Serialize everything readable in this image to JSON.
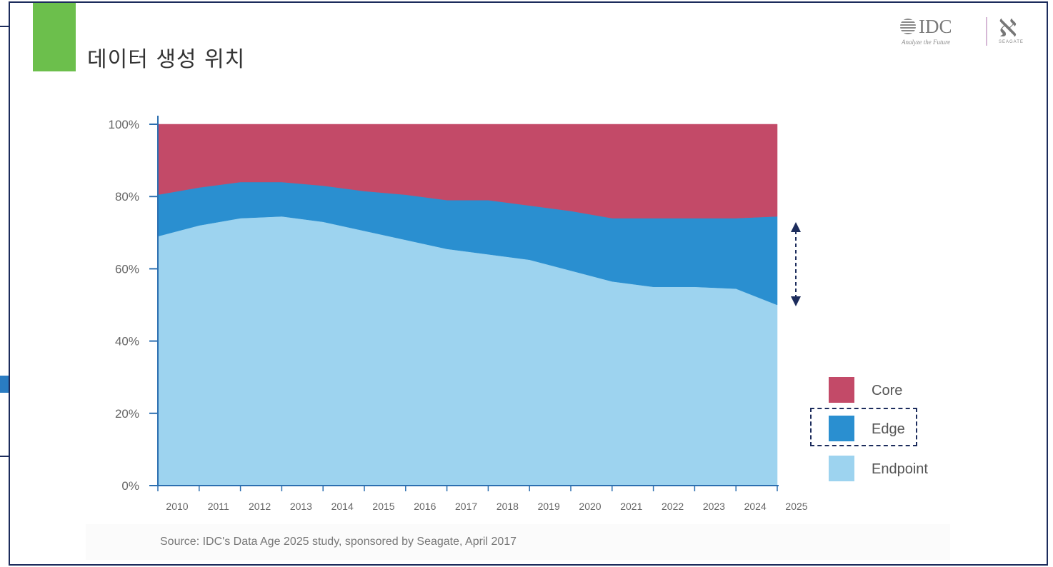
{
  "title": "데이터 생성 위치",
  "logos": {
    "idc_text": "IDC",
    "idc_tagline": "Analyze the Future",
    "seagate_word": "SEAGATE"
  },
  "source": "Source: IDC's Data Age 2025 study, sponsored by Seagate, April 2017",
  "colors": {
    "core": "#c34a68",
    "edge": "#2a8fd0",
    "endpoint": "#9dd3ef",
    "axis": "#2c6fb0",
    "arrow": "#1c2c5c"
  },
  "chart_data": {
    "type": "area",
    "stacked": true,
    "x": [
      "2010",
      "2011",
      "2012",
      "2013",
      "2014",
      "2015",
      "2016",
      "2017",
      "2018",
      "2019",
      "2020",
      "2021",
      "2022",
      "2023",
      "2024",
      "2025"
    ],
    "series": [
      {
        "name": "Endpoint",
        "values": [
          69,
          72,
          74,
          74.5,
          73,
          70.5,
          68,
          65.5,
          64,
          62.5,
          59.5,
          56.5,
          55,
          55,
          54.5,
          50
        ]
      },
      {
        "name": "Edge",
        "values": [
          11.5,
          10.5,
          10,
          9.5,
          10,
          11,
          12.5,
          13.5,
          15,
          15,
          16.5,
          17.5,
          19,
          19,
          19.5,
          24.5
        ]
      },
      {
        "name": "Core",
        "values": [
          19.5,
          17.5,
          16,
          16,
          17,
          18.5,
          19.5,
          21,
          21,
          22.5,
          24,
          26,
          26,
          26,
          26,
          25.5
        ]
      }
    ],
    "yticks": [
      "0%",
      "20%",
      "40%",
      "60%",
      "80%",
      "100%"
    ],
    "ylim": [
      0,
      100
    ],
    "legend": [
      "Core",
      "Edge",
      "Endpoint"
    ],
    "legend_position": "right",
    "grid": false
  }
}
